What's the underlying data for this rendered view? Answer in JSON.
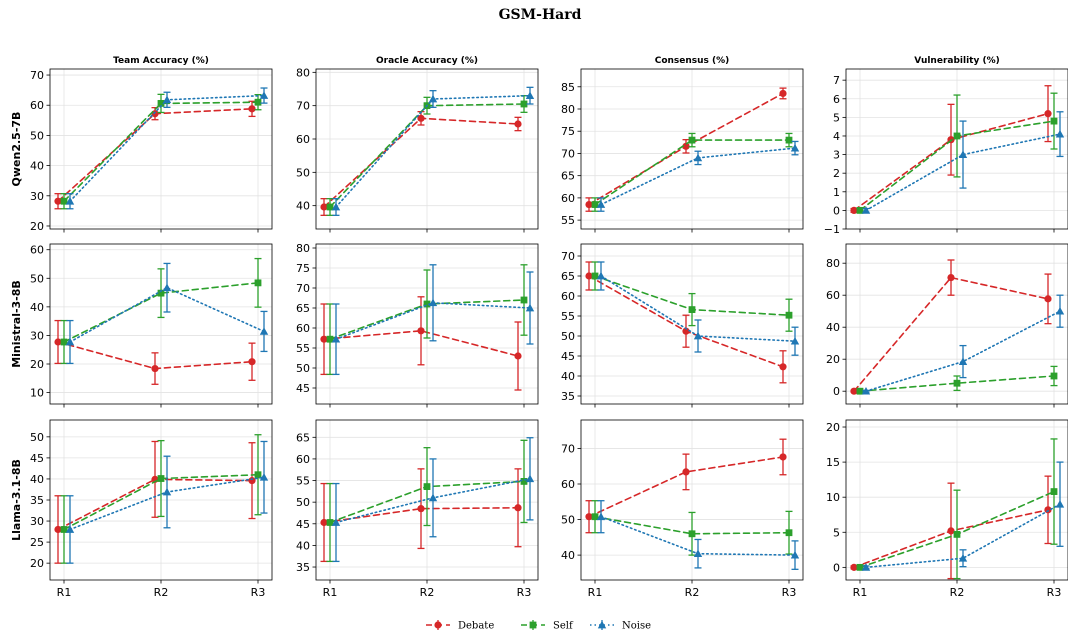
{
  "chart_data": {
    "type": "line",
    "title": "GSM-Hard",
    "x_categories": [
      "R1",
      "R2",
      "R3"
    ],
    "columns": [
      "Team Accuracy (%)",
      "Oracle Accuracy (%)",
      "Consensus (%)",
      "Vulnerability (%)"
    ],
    "rows": [
      "Qwen2.5-7B",
      "Ministral-3-8B",
      "Llama-3.1-8B"
    ],
    "legend": {
      "placement": "bottom-center",
      "entries": [
        {
          "name": "Debate",
          "color": "#d62728",
          "marker": "circle",
          "dash": "6,4"
        },
        {
          "name": "Self",
          "color": "#2ca02c",
          "marker": "square",
          "dash": "6,4"
        },
        {
          "name": "Noise",
          "color": "#1f77b4",
          "marker": "triangle",
          "dash": "1.5,3"
        }
      ]
    },
    "grid": true,
    "panels": [
      {
        "row": 0,
        "col": 0,
        "ylim": [
          19,
          72
        ],
        "yticks": [
          20,
          30,
          40,
          50,
          60,
          70
        ],
        "series": [
          {
            "name": "Debate",
            "y": [
              28.2,
              57.2,
              58.8
            ],
            "err": [
              2.5,
              2.0,
              2.5
            ]
          },
          {
            "name": "Self",
            "y": [
              28.2,
              60.6,
              61.0
            ],
            "err": [
              2.5,
              3.0,
              2.5
            ]
          },
          {
            "name": "Noise",
            "y": [
              28.2,
              61.8,
              63.2
            ],
            "err": [
              2.5,
              2.5,
              2.5
            ]
          }
        ]
      },
      {
        "row": 0,
        "col": 1,
        "ylim": [
          33,
          81
        ],
        "yticks": [
          40,
          50,
          60,
          70,
          80
        ],
        "series": [
          {
            "name": "Debate",
            "y": [
              39.6,
              66.2,
              64.5
            ],
            "err": [
              2.5,
              2.0,
              2.0
            ]
          },
          {
            "name": "Self",
            "y": [
              39.6,
              70.0,
              70.5
            ],
            "err": [
              2.5,
              2.5,
              2.5
            ]
          },
          {
            "name": "Noise",
            "y": [
              39.6,
              72.0,
              73.0
            ],
            "err": [
              2.5,
              2.5,
              2.5
            ]
          }
        ]
      },
      {
        "row": 0,
        "col": 2,
        "ylim": [
          53,
          89
        ],
        "yticks": [
          55,
          60,
          65,
          70,
          75,
          80,
          85
        ],
        "series": [
          {
            "name": "Debate",
            "y": [
              58.5,
              71.6,
              83.5
            ],
            "err": [
              1.5,
              1.5,
              1.2
            ]
          },
          {
            "name": "Self",
            "y": [
              58.5,
              73.0,
              73.0
            ],
            "err": [
              1.5,
              1.5,
              1.5
            ]
          },
          {
            "name": "Noise",
            "y": [
              58.5,
              69.0,
              71.2
            ],
            "err": [
              1.5,
              1.5,
              1.5
            ]
          }
        ]
      },
      {
        "row": 0,
        "col": 3,
        "ylim": [
          -1,
          7.6
        ],
        "yticks": [
          -1,
          0,
          1,
          2,
          3,
          4,
          5,
          6,
          7
        ],
        "series": [
          {
            "name": "Debate",
            "y": [
              0.0,
              3.8,
              5.2
            ],
            "err": [
              0.1,
              1.9,
              1.5
            ]
          },
          {
            "name": "Self",
            "y": [
              0.0,
              4.0,
              4.8
            ],
            "err": [
              0.1,
              2.2,
              1.5
            ]
          },
          {
            "name": "Noise",
            "y": [
              0.0,
              3.0,
              4.1
            ],
            "err": [
              0.1,
              1.8,
              1.2
            ]
          }
        ]
      },
      {
        "row": 1,
        "col": 0,
        "ylim": [
          6,
          62
        ],
        "yticks": [
          10,
          20,
          30,
          40,
          50,
          60
        ],
        "series": [
          {
            "name": "Debate",
            "y": [
              27.7,
              18.4,
              20.8
            ],
            "err": [
              7.5,
              5.5,
              6.5
            ]
          },
          {
            "name": "Self",
            "y": [
              27.7,
              44.8,
              48.4
            ],
            "err": [
              7.5,
              8.5,
              8.5
            ]
          },
          {
            "name": "Noise",
            "y": [
              27.7,
              46.7,
              31.4
            ],
            "err": [
              7.5,
              8.5,
              7.0
            ]
          }
        ]
      },
      {
        "row": 1,
        "col": 1,
        "ylim": [
          41,
          81
        ],
        "yticks": [
          45,
          50,
          55,
          60,
          65,
          70,
          75,
          80
        ],
        "series": [
          {
            "name": "Debate",
            "y": [
              57.2,
              59.3,
              53.0
            ],
            "err": [
              8.8,
              8.5,
              8.5
            ]
          },
          {
            "name": "Self",
            "y": [
              57.2,
              66.0,
              67.0
            ],
            "err": [
              8.8,
              8.5,
              8.8
            ]
          },
          {
            "name": "Noise",
            "y": [
              57.2,
              66.3,
              65.0
            ],
            "err": [
              8.8,
              9.5,
              9.0
            ]
          }
        ]
      },
      {
        "row": 1,
        "col": 2,
        "ylim": [
          33,
          73
        ],
        "yticks": [
          35,
          40,
          45,
          50,
          55,
          60,
          65,
          70
        ],
        "series": [
          {
            "name": "Debate",
            "y": [
              65.0,
              51.2,
              42.3
            ],
            "err": [
              3.5,
              4.0,
              4.0
            ]
          },
          {
            "name": "Self",
            "y": [
              65.0,
              56.6,
              55.2
            ],
            "err": [
              3.5,
              4.0,
              4.0
            ]
          },
          {
            "name": "Noise",
            "y": [
              65.0,
              50.0,
              48.7
            ],
            "err": [
              3.5,
              4.0,
              3.5
            ]
          }
        ]
      },
      {
        "row": 1,
        "col": 3,
        "ylim": [
          -8,
          92
        ],
        "yticks": [
          0,
          20,
          40,
          60,
          80
        ],
        "series": [
          {
            "name": "Debate",
            "y": [
              0.0,
              71.0,
              57.7
            ],
            "err": [
              0.5,
              11.0,
              15.5
            ]
          },
          {
            "name": "Self",
            "y": [
              0.0,
              5.0,
              9.5
            ],
            "err": [
              0.5,
              4.5,
              6.0
            ]
          },
          {
            "name": "Noise",
            "y": [
              0.0,
              18.5,
              50.0
            ],
            "err": [
              0.5,
              10.0,
              10.0
            ]
          }
        ]
      },
      {
        "row": 2,
        "col": 0,
        "ylim": [
          16,
          54
        ],
        "yticks": [
          20,
          25,
          30,
          35,
          40,
          45,
          50
        ],
        "series": [
          {
            "name": "Debate",
            "y": [
              28.0,
              39.9,
              39.6
            ],
            "err": [
              8.0,
              9.0,
              9.0
            ]
          },
          {
            "name": "Self",
            "y": [
              28.0,
              40.1,
              41.0
            ],
            "err": [
              8.0,
              9.0,
              9.5
            ]
          },
          {
            "name": "Noise",
            "y": [
              28.0,
              36.9,
              40.4
            ],
            "err": [
              8.0,
              8.5,
              8.5
            ]
          }
        ]
      },
      {
        "row": 2,
        "col": 1,
        "ylim": [
          32,
          69
        ],
        "yticks": [
          35,
          40,
          45,
          50,
          55,
          60,
          65
        ],
        "series": [
          {
            "name": "Debate",
            "y": [
              45.3,
              48.5,
              48.7
            ],
            "err": [
              9.0,
              9.2,
              9.0
            ]
          },
          {
            "name": "Self",
            "y": [
              45.3,
              53.6,
              54.8
            ],
            "err": [
              9.0,
              9.0,
              9.5
            ]
          },
          {
            "name": "Noise",
            "y": [
              45.3,
              51.0,
              55.4
            ],
            "err": [
              9.0,
              9.0,
              9.5
            ]
          }
        ]
      },
      {
        "row": 2,
        "col": 2,
        "ylim": [
          33,
          78
        ],
        "yticks": [
          40,
          50,
          60,
          70
        ],
        "series": [
          {
            "name": "Debate",
            "y": [
              50.8,
              63.4,
              67.6
            ],
            "err": [
              4.5,
              5.0,
              5.0
            ]
          },
          {
            "name": "Self",
            "y": [
              50.8,
              46.0,
              46.3
            ],
            "err": [
              4.5,
              6.0,
              6.0
            ]
          },
          {
            "name": "Noise",
            "y": [
              50.8,
              40.4,
              40.0
            ],
            "err": [
              4.5,
              4.0,
              4.0
            ]
          }
        ]
      },
      {
        "row": 2,
        "col": 3,
        "ylim": [
          -1.8,
          21
        ],
        "yticks": [
          0,
          5,
          10,
          15,
          20
        ],
        "series": [
          {
            "name": "Debate",
            "y": [
              0.0,
              5.2,
              8.2
            ],
            "err": [
              0.2,
              6.8,
              4.8
            ]
          },
          {
            "name": "Self",
            "y": [
              0.0,
              4.7,
              10.8
            ],
            "err": [
              0.2,
              6.3,
              7.5
            ]
          },
          {
            "name": "Noise",
            "y": [
              0.0,
              1.3,
              9.0
            ],
            "err": [
              0.2,
              1.2,
              6.0
            ]
          }
        ]
      }
    ]
  }
}
